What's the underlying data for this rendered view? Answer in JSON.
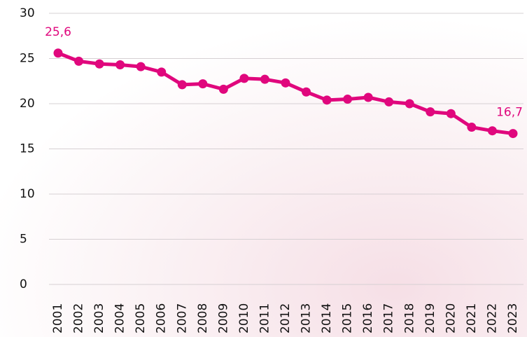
{
  "chart_data": {
    "type": "line",
    "categories": [
      "2001",
      "2002",
      "2003",
      "2004",
      "2005",
      "2006",
      "2007",
      "2008",
      "2009",
      "2010",
      "2011",
      "2012",
      "2013",
      "2014",
      "2015",
      "2016",
      "2017",
      "2018",
      "2019",
      "2020",
      "2021",
      "2022",
      "2023"
    ],
    "values": [
      25.6,
      24.7,
      24.4,
      24.3,
      24.1,
      23.5,
      22.1,
      22.2,
      21.6,
      22.8,
      22.7,
      22.3,
      21.3,
      20.4,
      20.5,
      20.7,
      20.2,
      20.0,
      19.1,
      18.9,
      17.4,
      17.0,
      16.7
    ],
    "value_labels": [
      "25,6",
      null,
      null,
      null,
      null,
      null,
      null,
      null,
      null,
      null,
      null,
      null,
      null,
      null,
      null,
      null,
      null,
      null,
      null,
      null,
      null,
      null,
      "16,7"
    ],
    "color": "#e0077d",
    "ylim": [
      0,
      30
    ],
    "yticks": [
      0,
      5,
      10,
      15,
      20,
      25,
      30
    ],
    "grid": true
  }
}
